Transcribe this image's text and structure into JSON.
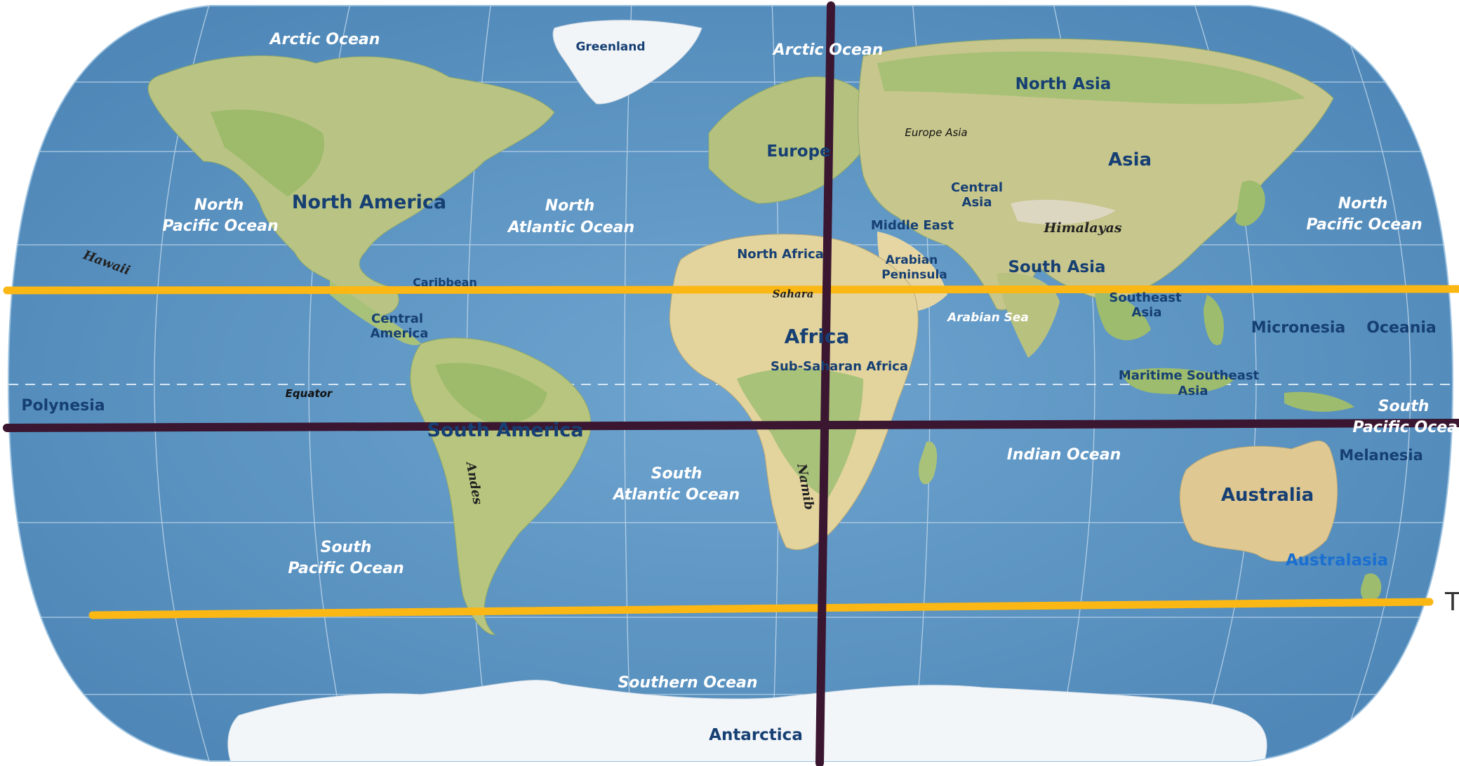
{
  "colors": {
    "ocean": "#5f97c4",
    "ocean_light": "#8dbbe0",
    "land": "#c9c98c",
    "land_green": "#9ebd6a",
    "desert": "#e8d9a8",
    "ice": "#f4f7fa",
    "tropic_line": "#fbb714",
    "cross_line": "#3a1630",
    "label_region": "#163f73",
    "label_ocean": "#ffffff",
    "label_australasia": "#1a6fd0"
  },
  "labels": {
    "arctic_ocean_w": "Arctic Ocean",
    "arctic_ocean_e": "Arctic Ocean",
    "greenland": "Greenland",
    "north_asia": "North Asia",
    "europe": "Europe",
    "europe_asia": "Europe Asia",
    "asia": "Asia",
    "central_asia_1": "Central",
    "central_asia_2": "Asia",
    "himalayas": "Himalayas",
    "middle_east": "Middle East",
    "north_america": "North America",
    "npo_w_1": "North",
    "npo_w_2": "Pacific Ocean",
    "nao_1": "North",
    "nao_2": "Atlantic Ocean",
    "npo_e_1": "North",
    "npo_e_2": "Pacific Ocean",
    "north_africa": "North Africa",
    "arabian_1": "Arabian",
    "arabian_2": "Peninsula",
    "south_asia": "South Asia",
    "hawaii": "Hawaii",
    "caribbean": "Caribbean",
    "sahara": "Sahara",
    "southeast_asia_1": "Southeast",
    "southeast_asia_2": "Asia",
    "central_america_1": "Central",
    "central_america_2": "America",
    "africa": "Africa",
    "arabian_sea": "Arabian Sea",
    "micronesia": "Micronesia",
    "oceania": "Oceania",
    "sub_saharan": "Sub-Saharan Africa",
    "maritime_sea_1": "Maritime Southeast",
    "maritime_sea_2": "Asia",
    "polynesia": "Polynesia",
    "equator": "Equator",
    "south_america": "South America",
    "spo_e_1": "South",
    "spo_e_2": "Pacific Ocean",
    "indian_ocean": "Indian Ocean",
    "melanesia": "Melanesia",
    "andes": "Andes",
    "sao_1": "South",
    "sao_2": "Atlantic Ocean",
    "namib": "Namib",
    "australia": "Australia",
    "spo_w_1": "South",
    "spo_w_2": "Pacific Ocean",
    "australasia": "Australasia",
    "southern_ocean": "Southern Ocean",
    "antarctica": "Antarctica",
    "edge_letter": "T"
  }
}
